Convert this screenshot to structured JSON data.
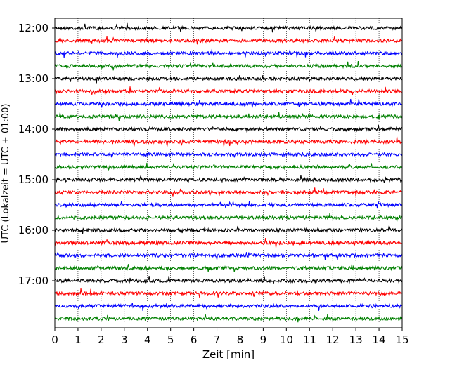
{
  "chart_data": {
    "type": "line",
    "title": "",
    "xlabel": "Zeit  [min]",
    "ylabel": "UTC (Lokalzeit = UTC + 01:00)",
    "xlim": [
      0,
      15
    ],
    "x_ticks": [
      "0",
      "1",
      "2",
      "3",
      "4",
      "5",
      "6",
      "7",
      "8",
      "9",
      "10",
      "11",
      "12",
      "13",
      "14",
      "15"
    ],
    "y_ticks": [
      "12:00",
      "13:00",
      "14:00",
      "15:00",
      "16:00",
      "17:00"
    ],
    "grid": "vertical dotted at each minute",
    "legend": "none",
    "trace_colors": [
      "#000000",
      "#ff0000",
      "#0000ff",
      "#008000"
    ],
    "trace_start_times": [
      "12:00",
      "12:15",
      "12:30",
      "12:45",
      "13:00",
      "13:15",
      "13:30",
      "13:45",
      "14:00",
      "14:15",
      "14:30",
      "14:45",
      "15:00",
      "15:15",
      "15:30",
      "15:45",
      "16:00",
      "16:15",
      "16:30",
      "16:45",
      "17:00",
      "17:15",
      "17:30",
      "17:45"
    ],
    "trace_length_min": 15
  }
}
